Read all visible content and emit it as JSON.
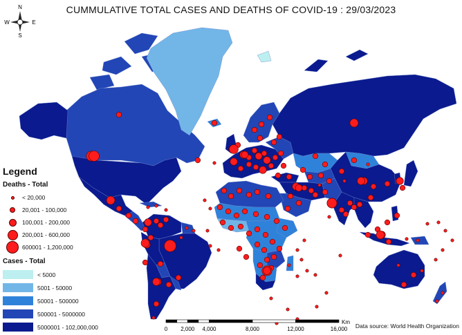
{
  "title": {
    "main": "CUMMULATIVE TOTAL CASES AND DEATHS OF COVID-19",
    "date": ": 29/03/2023"
  },
  "colors": {
    "cases_bins": [
      "#bdeff0",
      "#72b6e8",
      "#2f82da",
      "#2246b6",
      "#0b1a8e"
    ],
    "death_dot": "#ff1c1c",
    "death_dot_outline": "#5a0000"
  },
  "legend": {
    "title": "Legend",
    "deaths_title": "Deaths - Total",
    "deaths_bins": [
      {
        "label": "< 20,000",
        "size": 5
      },
      {
        "label": "20,001 - 100,000",
        "size": 8
      },
      {
        "label": "100,001 - 200,000",
        "size": 11
      },
      {
        "label": "200,001 - 600,000",
        "size": 15
      },
      {
        "label": "600001 - 1,200,000",
        "size": 18
      }
    ],
    "cases_title": "Cases - Total",
    "cases_bins": [
      {
        "label": "< 5000"
      },
      {
        "label": "5001 - 50000"
      },
      {
        "label": "50001 - 500000"
      },
      {
        "label": "500001 - 5000000"
      },
      {
        "label": "5000001 - 102,000,000"
      }
    ]
  },
  "north_arrow": {
    "n": "N",
    "s": "S",
    "e": "E",
    "w": "W",
    "icon": "compass-rose-icon"
  },
  "scale_bar": {
    "unit": "Km",
    "ticks": [
      "0",
      "2,000",
      "4,000",
      "8,000",
      "12,000",
      "16,000"
    ],
    "tick_km": [
      0,
      2000,
      4000,
      8000,
      12000,
      16000
    ]
  },
  "source": "Data source: World Health Organization"
}
